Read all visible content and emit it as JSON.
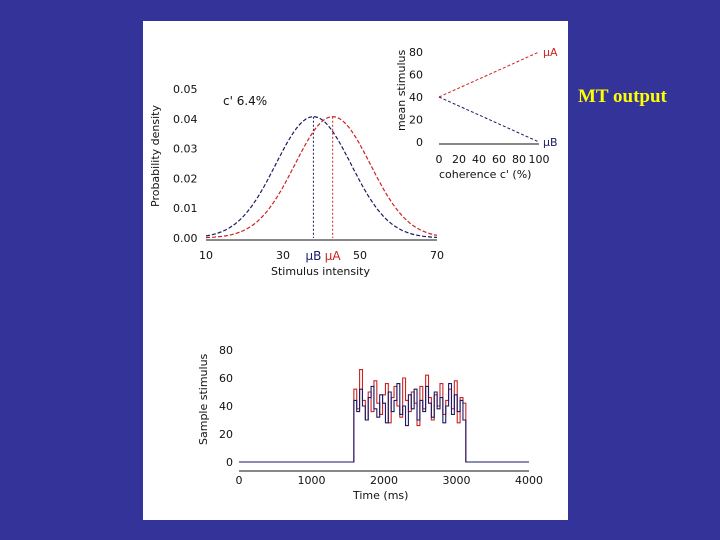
{
  "side_label": "MT output",
  "colors": {
    "background": "#333399",
    "panel": "#ffffff",
    "label": "#ffff00",
    "series_a": "#cc2222",
    "series_b": "#1a1a66"
  },
  "chart_data": [
    {
      "id": "distributions",
      "type": "line",
      "annotation": "c' 6.4%",
      "xlabel": "Stimulus intensity",
      "ylabel": "Probability density",
      "xlim": [
        10,
        70
      ],
      "ylim": [
        0,
        0.05
      ],
      "x_ticks": [
        "10",
        "30",
        "50",
        "70"
      ],
      "y_ticks": [
        "0.00",
        "0.01",
        "0.02",
        "0.03",
        "0.04",
        "0.05"
      ],
      "marker_labels": [
        "μB",
        "μA"
      ],
      "series": [
        {
          "name": "B",
          "mean": 37.9,
          "sd": 9.8,
          "color": "#1a1a66"
        },
        {
          "name": "A",
          "mean": 42.9,
          "sd": 9.8,
          "color": "#cc2222"
        }
      ]
    },
    {
      "id": "means-vs-coherence",
      "type": "line",
      "xlabel": "coherence c' (%)",
      "ylabel": "mean stimulus",
      "xlim": [
        0,
        100
      ],
      "ylim": [
        0,
        80
      ],
      "x_ticks": [
        "0",
        "20",
        "40",
        "60",
        "80",
        "100"
      ],
      "y_ticks": [
        "0",
        "20",
        "40",
        "60",
        "80"
      ],
      "series": [
        {
          "name": "μA",
          "x": [
            0,
            100
          ],
          "y": [
            40,
            80
          ],
          "color": "#cc2222"
        },
        {
          "name": "μB",
          "x": [
            0,
            100
          ],
          "y": [
            40,
            0
          ],
          "color": "#1a1a66"
        }
      ]
    },
    {
      "id": "sample-stimulus",
      "type": "line",
      "xlabel": "Time (ms)",
      "ylabel": "Sample stimulus",
      "xlim": [
        0,
        4000
      ],
      "ylim": [
        0,
        80
      ],
      "x_ticks": [
        "0",
        "1000",
        "2000",
        "3000",
        "4000"
      ],
      "y_ticks": [
        "0",
        "20",
        "40",
        "60",
        "80"
      ],
      "series": [
        {
          "name": "A",
          "color": "#cc2222",
          "values": [
            0,
            0,
            0,
            0,
            0,
            0,
            0,
            0,
            0,
            0,
            0,
            0,
            0,
            0,
            0,
            0,
            0,
            0,
            0,
            0,
            0,
            0,
            0,
            0,
            0,
            0,
            0,
            0,
            0,
            0,
            0,
            0,
            0,
            0,
            0,
            0,
            0,
            0,
            0,
            0,
            52,
            38,
            66,
            44,
            30,
            50,
            36,
            58,
            42,
            34,
            48,
            56,
            28,
            46,
            54,
            40,
            32,
            60,
            44,
            36,
            50,
            42,
            26,
            54,
            38,
            62,
            46,
            30,
            48,
            40,
            56,
            34,
            44,
            52,
            38,
            58,
            28,
            46,
            42,
            0,
            0,
            0,
            0,
            0,
            0,
            0,
            0,
            0,
            0,
            0,
            0,
            0,
            0,
            0,
            0,
            0,
            0,
            0,
            0,
            0,
            0
          ]
        },
        {
          "name": "B",
          "color": "#1a1a66",
          "values": [
            0,
            0,
            0,
            0,
            0,
            0,
            0,
            0,
            0,
            0,
            0,
            0,
            0,
            0,
            0,
            0,
            0,
            0,
            0,
            0,
            0,
            0,
            0,
            0,
            0,
            0,
            0,
            0,
            0,
            0,
            0,
            0,
            0,
            0,
            0,
            0,
            0,
            0,
            0,
            0,
            44,
            36,
            52,
            40,
            30,
            46,
            54,
            38,
            32,
            48,
            42,
            28,
            50,
            36,
            44,
            56,
            34,
            40,
            26,
            48,
            38,
            52,
            30,
            44,
            36,
            54,
            42,
            32,
            50,
            38,
            46,
            28,
            40,
            56,
            34,
            48,
            36,
            44,
            30,
            0,
            0,
            0,
            0,
            0,
            0,
            0,
            0,
            0,
            0,
            0,
            0,
            0,
            0,
            0,
            0,
            0,
            0,
            0,
            0,
            0,
            0
          ]
        }
      ]
    }
  ]
}
